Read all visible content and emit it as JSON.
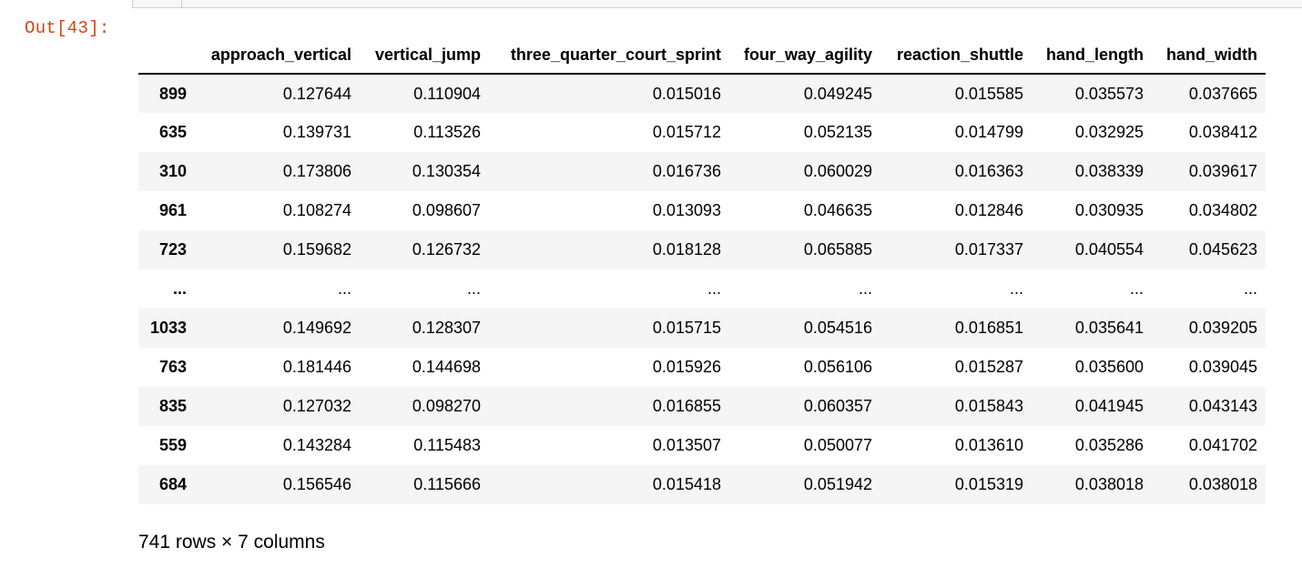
{
  "cell": {
    "prompt": "Out[43]:"
  },
  "dataframe": {
    "columns": [
      "approach_vertical",
      "vertical_jump",
      "three_quarter_court_sprint",
      "four_way_agility",
      "reaction_shuttle",
      "hand_length",
      "hand_width"
    ],
    "rows": [
      {
        "index": "899",
        "values": [
          "0.127644",
          "0.110904",
          "0.015016",
          "0.049245",
          "0.015585",
          "0.035573",
          "0.037665"
        ]
      },
      {
        "index": "635",
        "values": [
          "0.139731",
          "0.113526",
          "0.015712",
          "0.052135",
          "0.014799",
          "0.032925",
          "0.038412"
        ]
      },
      {
        "index": "310",
        "values": [
          "0.173806",
          "0.130354",
          "0.016736",
          "0.060029",
          "0.016363",
          "0.038339",
          "0.039617"
        ]
      },
      {
        "index": "961",
        "values": [
          "0.108274",
          "0.098607",
          "0.013093",
          "0.046635",
          "0.012846",
          "0.030935",
          "0.034802"
        ]
      },
      {
        "index": "723",
        "values": [
          "0.159682",
          "0.126732",
          "0.018128",
          "0.065885",
          "0.017337",
          "0.040554",
          "0.045623"
        ]
      },
      {
        "index": "...",
        "values": [
          "...",
          "...",
          "...",
          "...",
          "...",
          "...",
          "..."
        ]
      },
      {
        "index": "1033",
        "values": [
          "0.149692",
          "0.128307",
          "0.015715",
          "0.054516",
          "0.016851",
          "0.035641",
          "0.039205"
        ]
      },
      {
        "index": "763",
        "values": [
          "0.181446",
          "0.144698",
          "0.015926",
          "0.056106",
          "0.015287",
          "0.035600",
          "0.039045"
        ]
      },
      {
        "index": "835",
        "values": [
          "0.127032",
          "0.098270",
          "0.016855",
          "0.060357",
          "0.015843",
          "0.041945",
          "0.043143"
        ]
      },
      {
        "index": "559",
        "values": [
          "0.143284",
          "0.115483",
          "0.013507",
          "0.050077",
          "0.013610",
          "0.035286",
          "0.041702"
        ]
      },
      {
        "index": "684",
        "values": [
          "0.156546",
          "0.115666",
          "0.015418",
          "0.051942",
          "0.015319",
          "0.038018",
          "0.038018"
        ]
      }
    ],
    "shape_text": "741 rows × 7 columns"
  },
  "colors": {
    "prompt": "#d84315",
    "stripe": "#f5f5f5"
  }
}
